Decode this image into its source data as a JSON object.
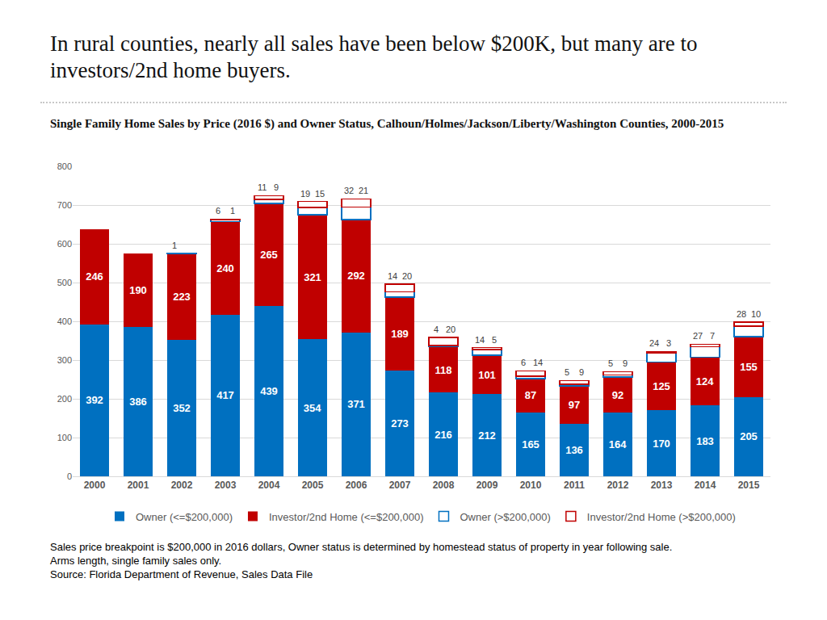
{
  "chart_data": {
    "type": "bar",
    "title": "In rural counties, nearly all sales have been below $200K, but many are to investors/2nd home buyers.",
    "subtitle": "Single Family Home Sales by Price (2016 $) and Owner Status, Calhoun/Holmes/Jackson/Liberty/Washington Counties, 2000-2015",
    "footnotes": [
      "Sales price breakpoint is $200,000 in 2016 dollars, Owner status is determined by homestead status of property in year following sale.",
      "Arms length, single family sales only.",
      "Source: Florida Department of Revenue, Sales Data File"
    ],
    "categories": [
      "2000",
      "2001",
      "2002",
      "2003",
      "2004",
      "2005",
      "2006",
      "2007",
      "2008",
      "2009",
      "2010",
      "2011",
      "2012",
      "2013",
      "2014",
      "2015"
    ],
    "series": [
      {
        "name": "Owner (<=$200,000)",
        "color": "#0070c0",
        "line_style": "solid",
        "values": [
          392,
          386,
          352,
          417,
          439,
          354,
          371,
          273,
          216,
          212,
          165,
          136,
          164,
          170,
          183,
          205
        ]
      },
      {
        "name": "Investor/2nd Home (<=$200,000)",
        "color": "#c00000",
        "line_style": "solid",
        "values": [
          246,
          190,
          223,
          240,
          265,
          321,
          292,
          189,
          118,
          101,
          87,
          97,
          92,
          125,
          124,
          155
        ]
      },
      {
        "name": "Owner (>$200,000)",
        "color": "#0070c0",
        "line_style": "dashed",
        "values": [
          null,
          null,
          1,
          6,
          11,
          19,
          32,
          14,
          4,
          14,
          6,
          5,
          5,
          24,
          27,
          28
        ]
      },
      {
        "name": "Investor/2nd Home (>$200,000)",
        "color": "#c00000",
        "line_style": "dashed",
        "values": [
          null,
          null,
          null,
          1,
          9,
          15,
          21,
          20,
          20,
          5,
          14,
          9,
          9,
          3,
          7,
          10
        ]
      }
    ],
    "stacked": true,
    "data_labels": true,
    "ylim": [
      0,
      800
    ],
    "yticks": [
      0,
      100,
      200,
      300,
      400,
      500,
      600,
      700,
      800
    ],
    "grid": true,
    "legend": "bottom"
  }
}
